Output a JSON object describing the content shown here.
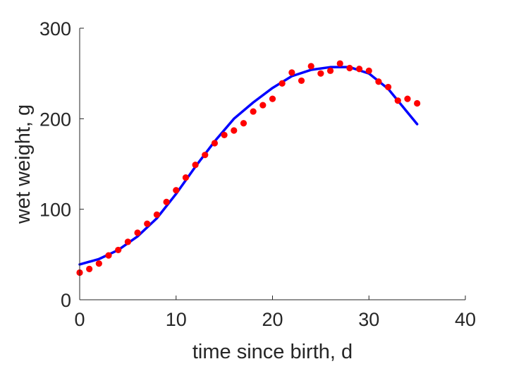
{
  "chart_data": {
    "type": "scatter",
    "xlabel": "time since birth, d",
    "ylabel": "wet weight, g",
    "xlim": [
      0,
      40
    ],
    "ylim": [
      0,
      300
    ],
    "x_ticks": [
      0,
      10,
      20,
      30,
      40
    ],
    "y_ticks": [
      0,
      100,
      200,
      300
    ],
    "grid": false,
    "series": [
      {
        "kind": "scatter",
        "color": "#ff0000",
        "x": [
          0,
          1,
          2,
          3,
          4,
          5,
          6,
          7,
          8,
          9,
          10,
          11,
          12,
          13,
          14,
          15,
          16,
          17,
          18,
          19,
          20,
          21,
          22,
          23,
          24,
          25,
          26,
          27,
          28,
          29,
          30,
          31,
          32,
          33,
          34,
          35
        ],
        "y": [
          30,
          34,
          40,
          49,
          55,
          64,
          74,
          84,
          94,
          108,
          121,
          135,
          149,
          160,
          173,
          182,
          187,
          195,
          208,
          215,
          222,
          239,
          251,
          242,
          258,
          250,
          253,
          261,
          256,
          255,
          253,
          241,
          235,
          220,
          222,
          217
        ]
      },
      {
        "kind": "line",
        "color": "#0000ff",
        "x": [
          0,
          2,
          4,
          6,
          8,
          10,
          12,
          14,
          16,
          18,
          20,
          22,
          24,
          26,
          28,
          30,
          32,
          34,
          35
        ],
        "y": [
          39,
          45,
          55,
          70,
          90,
          117,
          147,
          175,
          200,
          218,
          234,
          247,
          254,
          257,
          257,
          250,
          233,
          207,
          194
        ]
      }
    ]
  }
}
